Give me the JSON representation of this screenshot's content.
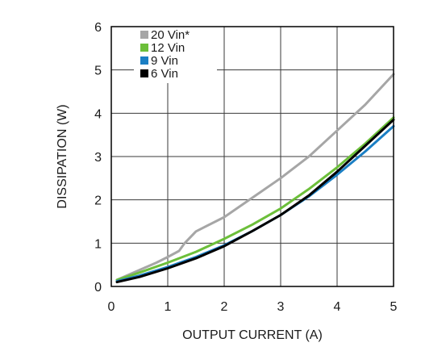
{
  "chart_data": {
    "type": "line",
    "title": "",
    "xlabel": "OUTPUT CURRENT (A)",
    "ylabel": "DISSIPATION (W)",
    "xlim": [
      0,
      5
    ],
    "ylim": [
      0,
      6
    ],
    "xticks": [
      "0",
      "1",
      "2",
      "3",
      "4",
      "5"
    ],
    "yticks": [
      "0",
      "1",
      "2",
      "3",
      "4",
      "5",
      "6"
    ],
    "grid": true,
    "legend_position": "top-left",
    "series": [
      {
        "name": "20 Vin*",
        "color": "#a6a6a6",
        "x": [
          0.1,
          0.5,
          0.8,
          1.0,
          1.2,
          1.3,
          1.5,
          2.0,
          2.5,
          3.0,
          3.5,
          4.0,
          4.5,
          5.0
        ],
        "y": [
          0.15,
          0.38,
          0.55,
          0.68,
          0.82,
          1.0,
          1.27,
          1.6,
          2.05,
          2.5,
          3.0,
          3.6,
          4.2,
          4.9
        ]
      },
      {
        "name": "12 Vin",
        "color": "#6cbf3a",
        "x": [
          0.1,
          0.5,
          1.0,
          1.5,
          2.0,
          2.5,
          3.0,
          3.5,
          4.0,
          4.5,
          5.0
        ],
        "y": [
          0.15,
          0.32,
          0.55,
          0.8,
          1.1,
          1.43,
          1.8,
          2.25,
          2.75,
          3.3,
          3.9
        ]
      },
      {
        "name": "9 Vin",
        "color": "#1b7fc4",
        "x": [
          0.1,
          0.5,
          1.0,
          1.5,
          2.0,
          2.5,
          3.0,
          3.5,
          4.0,
          4.5,
          5.0
        ],
        "y": [
          0.12,
          0.25,
          0.45,
          0.68,
          0.95,
          1.28,
          1.65,
          2.08,
          2.58,
          3.12,
          3.7
        ]
      },
      {
        "name": "6 Vin",
        "color": "#000000",
        "x": [
          0.1,
          0.5,
          1.0,
          1.5,
          2.0,
          2.5,
          3.0,
          3.5,
          4.0,
          4.5,
          5.0
        ],
        "y": [
          0.1,
          0.22,
          0.42,
          0.65,
          0.93,
          1.28,
          1.65,
          2.1,
          2.65,
          3.25,
          3.85
        ]
      }
    ]
  }
}
